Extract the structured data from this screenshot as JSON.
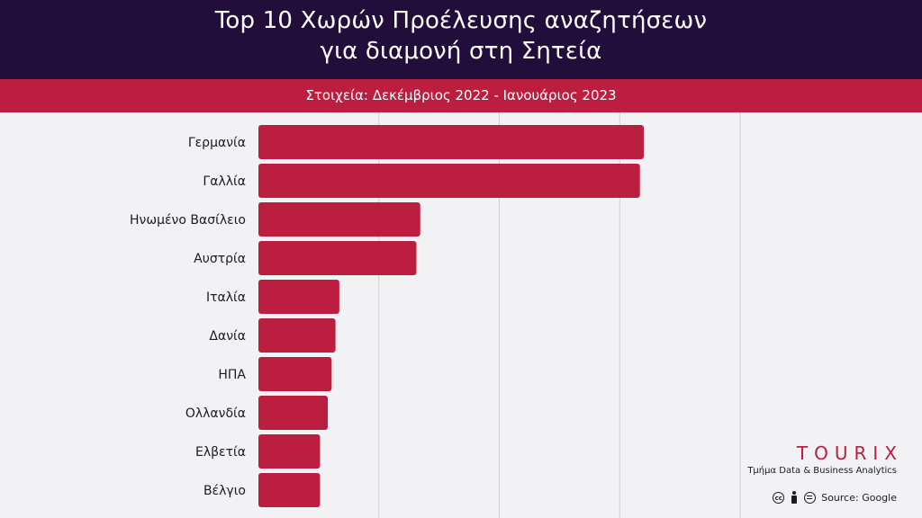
{
  "header": {
    "title_line1": "Top 10 Χωρών Προέλευσης αναζητήσεων",
    "title_line2": "για διαμονή στη Σητεία",
    "subtitle": "Στοιχεία: Δεκέμβριος 2022 - Ιανουάριος 2023"
  },
  "colors": {
    "header_bg": "#220e3a",
    "accent": "#bb1e3f",
    "background": "#f2f2f4",
    "gridline": "#cfcfd4"
  },
  "chart_data": {
    "type": "bar",
    "orientation": "horizontal",
    "title": "Top 10 Χωρών Προέλευσης αναζητήσεων για διαμονή στη Σητεία",
    "subtitle": "Στοιχεία: Δεκέμβριος 2022 - Ιανουάριος 2023",
    "categories": [
      "Γερμανία",
      "Γαλλία",
      "Ηνωμένο Βασίλειο",
      "Αυστρία",
      "Ιταλία",
      "Δανία",
      "ΗΠΑ",
      "Ολλανδία",
      "Ελβετία",
      "Βέλγιο"
    ],
    "values": [
      100,
      99,
      42,
      41,
      21,
      20,
      19,
      18,
      16,
      16
    ],
    "xlim": [
      0,
      125
    ],
    "grid": true,
    "axis_labels_shown": false
  },
  "branding": {
    "logo_text": "TOURIX",
    "tagline": "Τμήμα Data & Business Analytics",
    "source": "Source: Google",
    "license_icons": [
      "cc-icon",
      "by-icon",
      "nd-icon"
    ]
  }
}
